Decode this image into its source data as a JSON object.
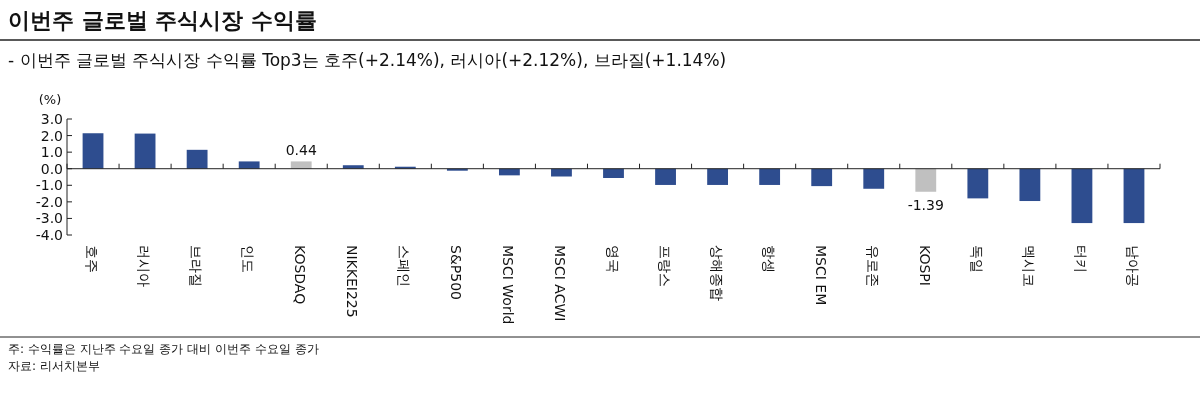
{
  "chart_data": {
    "type": "bar",
    "title": "이번주 글로벌 주식시장 수익률",
    "subtitle": "- 이번주 글로벌 주식시장 수익률 Top3는 호주(+2.14%), 러시아(+2.12%), 브라질(+1.14%)",
    "ylabel": "(%)",
    "categories": [
      "호주",
      "러시아",
      "브라질",
      "인도",
      "KOSDAQ",
      "NIKKEI225",
      "스페인",
      "S&P500",
      "MSCI World",
      "MSCI ACWI",
      "영국",
      "프랑스",
      "상해종합",
      "항셍",
      "MSCI EM",
      "유로존",
      "KOSPI",
      "독일",
      "멕시코",
      "터키",
      "남아공"
    ],
    "values": [
      2.14,
      2.12,
      1.14,
      0.44,
      0.44,
      0.21,
      0.12,
      -0.12,
      -0.4,
      -0.47,
      -0.56,
      -0.98,
      -0.98,
      -0.98,
      -1.05,
      -1.21,
      -1.39,
      -1.79,
      -1.95,
      -3.28,
      -3.28
    ],
    "colors": [
      "#2e4d8f",
      "#2e4d8f",
      "#2e4d8f",
      "#2e4d8f",
      "#c0c0c0",
      "#2e4d8f",
      "#2e4d8f",
      "#2e4d8f",
      "#2e4d8f",
      "#2e4d8f",
      "#2e4d8f",
      "#2e4d8f",
      "#2e4d8f",
      "#2e4d8f",
      "#2e4d8f",
      "#2e4d8f",
      "#c0c0c0",
      "#2e4d8f",
      "#2e4d8f",
      "#2e4d8f",
      "#2e4d8f"
    ],
    "value_labels": [
      null,
      null,
      null,
      null,
      "0.44",
      null,
      null,
      null,
      null,
      null,
      null,
      null,
      null,
      null,
      null,
      null,
      "-1.39",
      null,
      null,
      null,
      null
    ],
    "ylim": [
      -4.0,
      3.0
    ],
    "yticks": [
      {
        "value": 3,
        "label": "3.0"
      },
      {
        "value": 2,
        "label": "2.0"
      },
      {
        "value": 1,
        "label": "1.0"
      },
      {
        "value": 0,
        "label": "0.0"
      },
      {
        "value": -1,
        "label": "-1.0"
      },
      {
        "value": -2,
        "label": "-2.0"
      },
      {
        "value": -3,
        "label": "-3.0"
      },
      {
        "value": -4,
        "label": "-4.0"
      }
    ],
    "annotations": [
      "주: 수익률은 지난주 수요일 종가 대비 이번주 수요일 종가",
      "자료: 리서치본부"
    ]
  }
}
